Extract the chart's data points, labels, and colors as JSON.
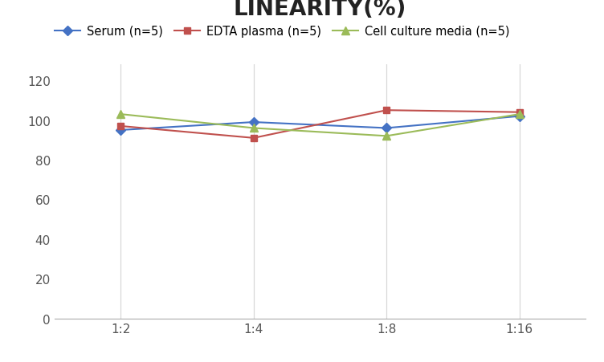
{
  "title": "LINEARITY(%)",
  "title_fontsize": 20,
  "title_fontweight": "bold",
  "x_labels": [
    "1:2",
    "1:4",
    "1:8",
    "1:16"
  ],
  "x_positions": [
    0,
    1,
    2,
    3
  ],
  "series": [
    {
      "label": "Serum (n=5)",
      "values": [
        95,
        99,
        96,
        102
      ],
      "color": "#4472c4",
      "marker": "D",
      "linewidth": 1.5,
      "markersize": 6
    },
    {
      "label": "EDTA plasma (n=5)",
      "values": [
        97,
        91,
        105,
        104
      ],
      "color": "#c0504d",
      "marker": "s",
      "linewidth": 1.5,
      "markersize": 6
    },
    {
      "label": "Cell culture media (n=5)",
      "values": [
        103,
        96,
        92,
        103
      ],
      "color": "#9bbb59",
      "marker": "^",
      "linewidth": 1.5,
      "markersize": 7
    }
  ],
  "ylim": [
    0,
    128
  ],
  "yticks": [
    0,
    20,
    40,
    60,
    80,
    100,
    120
  ],
  "grid_color": "#d8d8d8",
  "bg_color": "#ffffff",
  "legend_fontsize": 10.5,
  "tick_fontsize": 11,
  "axis_color": "#aaaaaa"
}
